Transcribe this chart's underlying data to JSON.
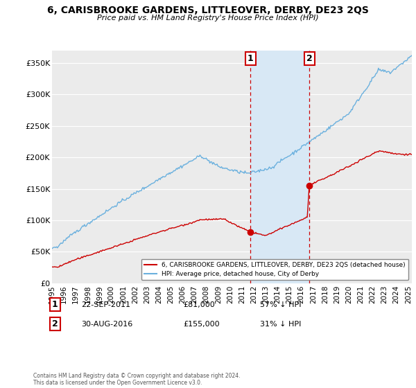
{
  "title": "6, CARISBROOKE GARDENS, LITTLEOVER, DERBY, DE23 2QS",
  "subtitle": "Price paid vs. HM Land Registry's House Price Index (HPI)",
  "ylabel_ticks": [
    "£0",
    "£50K",
    "£100K",
    "£150K",
    "£200K",
    "£250K",
    "£300K",
    "£350K"
  ],
  "ytick_values": [
    0,
    50000,
    100000,
    150000,
    200000,
    250000,
    300000,
    350000
  ],
  "ylim": [
    0,
    370000
  ],
  "xlim_start": 1995.0,
  "xlim_end": 2025.3,
  "hpi_color": "#6ab0de",
  "price_color": "#cc0000",
  "shade_color": "#d8e8f5",
  "sale1_x": 2011.72,
  "sale1_y": 81000,
  "sale2_x": 2016.66,
  "sale2_y": 155000,
  "vline1_x": 2011.72,
  "vline2_x": 2016.66,
  "legend_line1": "6, CARISBROOKE GARDENS, LITTLEOVER, DERBY, DE23 2QS (detached house)",
  "legend_line2": "HPI: Average price, detached house, City of Derby",
  "annot1_num": "1",
  "annot2_num": "2",
  "annot1_date": "22-SEP-2011",
  "annot1_price": "£81,000",
  "annot1_hpi": "57% ↓ HPI",
  "annot2_date": "30-AUG-2016",
  "annot2_price": "£155,000",
  "annot2_hpi": "31% ↓ HPI",
  "footnote": "Contains HM Land Registry data © Crown copyright and database right 2024.\nThis data is licensed under the Open Government Licence v3.0.",
  "bg_color": "#ffffff",
  "plot_bg_color": "#ebebeb",
  "grid_color": "#ffffff"
}
